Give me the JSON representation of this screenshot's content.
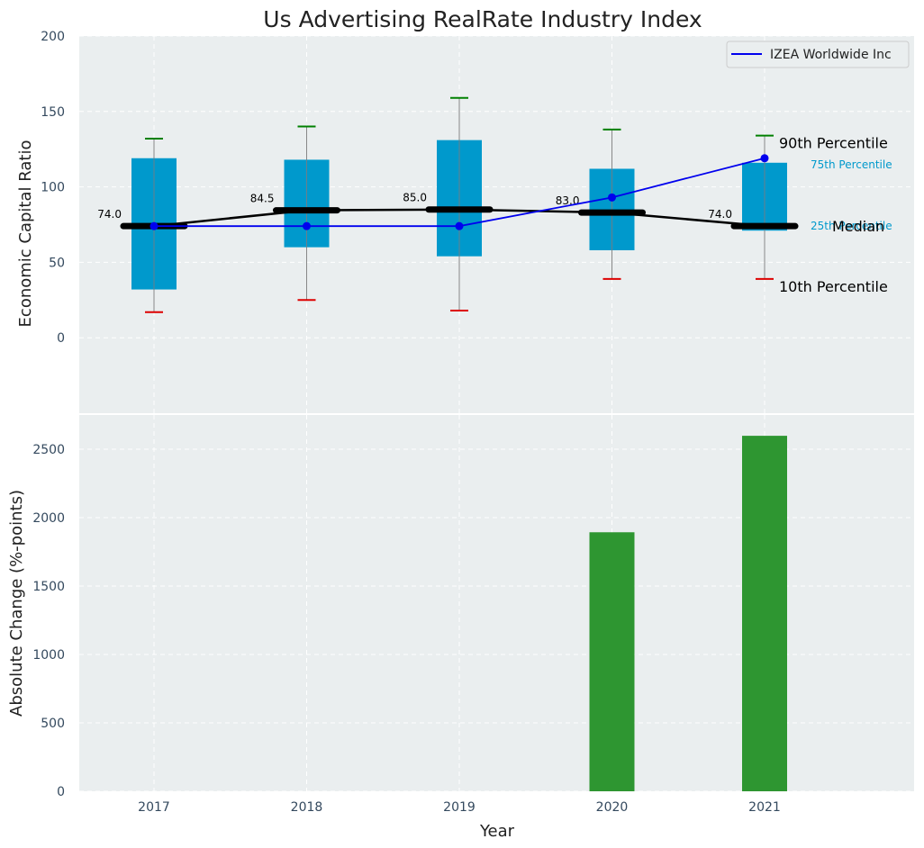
{
  "title": "Us Advertising RealRate Industry Index",
  "colors": {
    "panel_bg": "#eaeeef",
    "box": "#0099cc",
    "median": "#000000",
    "company": "#0000ee",
    "p90": "#008000",
    "p10": "#dd0000",
    "whisker": "#888888",
    "bar": "#2e9631",
    "tick_text": "#34495e"
  },
  "chart_data": [
    {
      "type": "box",
      "ylabel": "Economic Capital Ratio",
      "ylim": [
        -50,
        200
      ],
      "yticks": [
        0,
        50,
        100,
        150,
        200
      ],
      "categories": [
        "2017",
        "2018",
        "2019",
        "2020",
        "2021"
      ],
      "p10": [
        17,
        25,
        18,
        39,
        39
      ],
      "p25": [
        32,
        60,
        54,
        58,
        71
      ],
      "median": [
        74.0,
        84.5,
        85.0,
        83.0,
        74.0
      ],
      "p75": [
        119,
        118,
        131,
        112,
        116
      ],
      "p90": [
        132,
        140,
        159,
        138,
        134
      ],
      "median_labels": [
        "74.0",
        "84.5",
        "85.0",
        "83.0",
        "74.0"
      ],
      "series": [
        {
          "name": "IZEA Worldwide Inc",
          "values": [
            74,
            74,
            74,
            93,
            119
          ]
        }
      ],
      "annotations": {
        "p90": "90th Percentile",
        "p75": "75th Percentile",
        "median": "Median",
        "p25": "25th Percentile",
        "p10": "10th Percentile"
      },
      "grid": true,
      "legend": "top-right"
    },
    {
      "type": "bar",
      "xlabel": "Year",
      "ylabel": "Absolute Change (%-points)",
      "ylim": [
        0,
        2750
      ],
      "yticks": [
        0,
        500,
        1000,
        1500,
        2000,
        2500
      ],
      "categories": [
        "2017",
        "2018",
        "2019",
        "2020",
        "2021"
      ],
      "values": [
        0,
        0,
        0,
        1893,
        2598
      ],
      "grid": true
    }
  ]
}
